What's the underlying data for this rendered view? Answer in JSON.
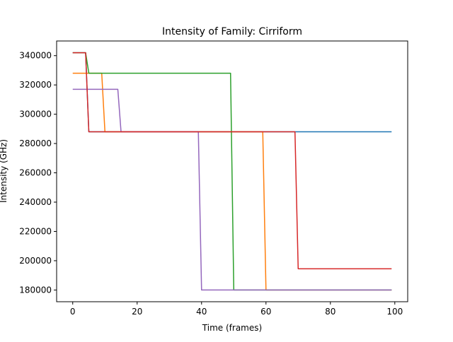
{
  "chart_data": {
    "type": "line",
    "title": "Intensity of Family: Cirriform",
    "xlabel": "Time (frames)",
    "ylabel": "Intensity (GHz)",
    "xlim": [
      -5,
      104
    ],
    "ylim": [
      172000,
      350000
    ],
    "xticks": [
      0,
      20,
      40,
      60,
      80,
      100
    ],
    "yticks": [
      180000,
      200000,
      220000,
      240000,
      260000,
      280000,
      300000,
      320000,
      340000
    ],
    "grid": false,
    "legend": "none",
    "series": [
      {
        "color": "#1f77b4",
        "x": [
          0,
          4,
          5,
          99
        ],
        "y": [
          342000,
          342000,
          288000,
          288000
        ]
      },
      {
        "color": "#ff7f0e",
        "x": [
          0,
          9,
          10,
          59,
          60,
          99
        ],
        "y": [
          328000,
          328000,
          288000,
          288000,
          180000,
          180000
        ]
      },
      {
        "color": "#2ca02c",
        "x": [
          0,
          4,
          5,
          49,
          50,
          99
        ],
        "y": [
          342000,
          342000,
          328000,
          328000,
          180000,
          180000
        ]
      },
      {
        "color": "#9467bd",
        "x": [
          0,
          14,
          15,
          39,
          40,
          99
        ],
        "y": [
          317000,
          317000,
          288000,
          288000,
          180000,
          180000
        ]
      },
      {
        "color": "#d62728",
        "x": [
          0,
          4,
          5,
          69,
          70,
          99
        ],
        "y": [
          342000,
          342000,
          288000,
          288000,
          194500,
          194500
        ]
      }
    ]
  }
}
